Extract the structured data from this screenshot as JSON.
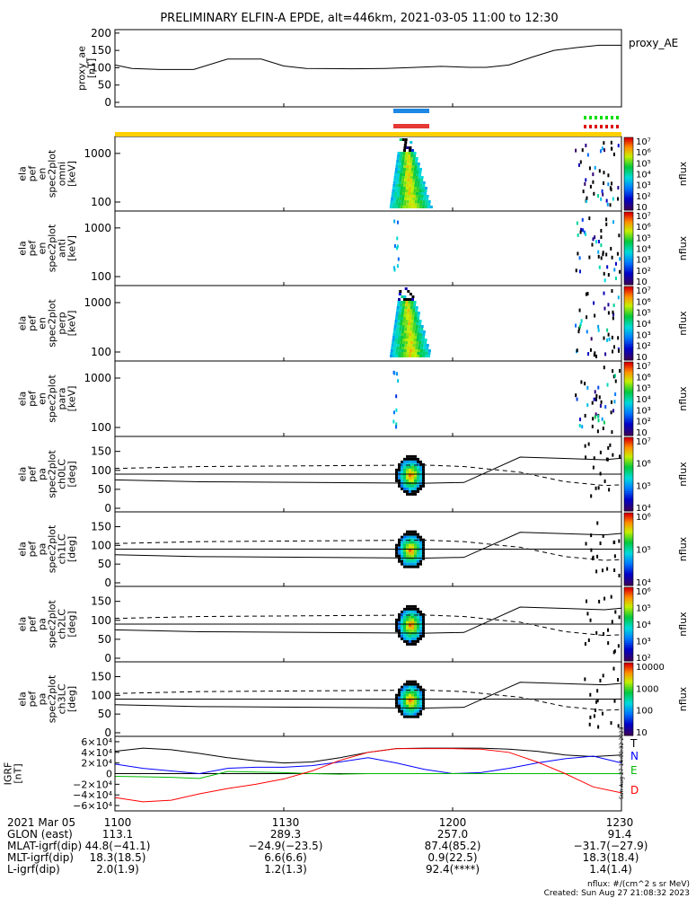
{
  "title": "PRELIMINARY ELFIN-A EPDE, alt=446km, 2021-03-05 11:00 to 12:30",
  "chart_data": [
    {
      "type": "line",
      "name": "proxy_ae",
      "ylabel_lines": [
        "proxy_ae",
        "[nT]"
      ],
      "legend": "proxy_AE",
      "y_ticks": [
        "0",
        "50",
        "100",
        "150",
        "200"
      ],
      "ylim": [
        0,
        210
      ],
      "x_minutes": [
        0,
        3,
        8,
        14,
        20,
        26,
        30,
        34,
        42,
        48,
        52,
        58,
        63,
        66,
        70,
        74,
        78,
        82,
        86,
        90
      ],
      "values": [
        108,
        98,
        95,
        95,
        125,
        125,
        105,
        98,
        97,
        98,
        100,
        104,
        101,
        101,
        108,
        130,
        150,
        158,
        165,
        165
      ]
    },
    {
      "type": "heatmap",
      "name": "spectrogram-omni",
      "ylabel_lines": [
        "ela",
        "pef",
        "en",
        "spec2plot",
        "omni",
        "[keV]"
      ],
      "y_ticks": [
        "100",
        "1000"
      ],
      "colorbar": {
        "label": "nflux",
        "ticks": [
          "10",
          "10²",
          "10³",
          "10⁴",
          "10⁵",
          "10⁶",
          "10⁷"
        ]
      }
    },
    {
      "type": "heatmap",
      "name": "spectrogram-anti",
      "ylabel_lines": [
        "ela",
        "pef",
        "en",
        "spec2plot",
        "anti",
        "[keV]"
      ],
      "y_ticks": [
        "100",
        "1000"
      ],
      "colorbar": {
        "label": "nflux",
        "ticks": [
          "10",
          "10²",
          "10³",
          "10⁴",
          "10⁵",
          "10⁶",
          "10⁷"
        ]
      }
    },
    {
      "type": "heatmap",
      "name": "spectrogram-perp",
      "ylabel_lines": [
        "ela",
        "pef",
        "en",
        "spec2plot",
        "perp",
        "[keV]"
      ],
      "y_ticks": [
        "100",
        "1000"
      ],
      "colorbar": {
        "label": "nflux",
        "ticks": [
          "10",
          "10²",
          "10³",
          "10⁴",
          "10⁵",
          "10⁶",
          "10⁷"
        ]
      }
    },
    {
      "type": "heatmap",
      "name": "spectrogram-para",
      "ylabel_lines": [
        "ela",
        "pef",
        "en",
        "spec2plot",
        "para",
        "[keV]"
      ],
      "y_ticks": [
        "100",
        "1000"
      ],
      "colorbar": {
        "label": "nflux",
        "ticks": [
          "10",
          "10²",
          "10³",
          "10⁴",
          "10⁵",
          "10⁶",
          "10⁷"
        ]
      }
    },
    {
      "type": "heatmap",
      "name": "pitch-angle-ch0LC",
      "ylabel_lines": [
        "ela",
        "pef",
        "pa",
        "spec2plot",
        "ch0LC",
        "[deg]"
      ],
      "y_ticks": [
        "0",
        "50",
        "100",
        "150"
      ],
      "colorbar": {
        "label": "nflux",
        "ticks": [
          "10⁴",
          "10⁵",
          "10⁶",
          "10⁷"
        ]
      }
    },
    {
      "type": "heatmap",
      "name": "pitch-angle-ch1LC",
      "ylabel_lines": [
        "ela",
        "pef",
        "pa",
        "spec2plot",
        "ch1LC",
        "[deg]"
      ],
      "y_ticks": [
        "0",
        "50",
        "100",
        "150"
      ],
      "colorbar": {
        "label": "nflux",
        "ticks": [
          "10⁴",
          "10⁵",
          "10⁶"
        ]
      }
    },
    {
      "type": "heatmap",
      "name": "pitch-angle-ch2LC",
      "ylabel_lines": [
        "ela",
        "pef",
        "pa",
        "spec2plot",
        "ch2LC",
        "[deg]"
      ],
      "y_ticks": [
        "0",
        "50",
        "100",
        "150"
      ],
      "colorbar": {
        "label": "nflux",
        "ticks": [
          "10²",
          "10³",
          "10⁴",
          "10⁵",
          "10⁶"
        ]
      }
    },
    {
      "type": "heatmap",
      "name": "pitch-angle-ch3LC",
      "ylabel_lines": [
        "ela",
        "pef",
        "pa",
        "spec2plot",
        "ch3LC",
        "[deg]"
      ],
      "y_ticks": [
        "0",
        "50",
        "100",
        "150"
      ],
      "colorbar": {
        "label": "nflux",
        "ticks": [
          "10",
          "100",
          "1000",
          "10000"
        ]
      }
    },
    {
      "type": "line",
      "name": "igrf-field",
      "ylabel_lines": [
        "IGRF",
        "[nT]"
      ],
      "y_ticks": [
        "−6×10⁴",
        "−4×10⁴",
        "−2×10⁴",
        "0",
        "2×10⁴",
        "4×10⁴",
        "6×10⁴"
      ],
      "ylim": [
        -65000,
        65000
      ],
      "legend": [
        {
          "label": "T",
          "color": "#000000"
        },
        {
          "label": "N",
          "color": "#0000ff"
        },
        {
          "label": "E",
          "color": "#00bb00"
        },
        {
          "label": "D",
          "color": "#ff0000"
        }
      ],
      "x_minutes": [
        0,
        5,
        10,
        15,
        20,
        25,
        30,
        35,
        40,
        45,
        50,
        55,
        60,
        65,
        70,
        75,
        80,
        85,
        90
      ],
      "series": [
        {
          "name": "T",
          "values": [
            42000,
            48000,
            45000,
            38000,
            30000,
            24000,
            20000,
            22000,
            30000,
            40000,
            47000,
            48000,
            48000,
            48000,
            46000,
            42000,
            35000,
            32000,
            35000
          ]
        },
        {
          "name": "N",
          "values": [
            18000,
            10000,
            5000,
            0,
            10000,
            12000,
            12000,
            15000,
            22000,
            30000,
            20000,
            8000,
            0,
            2000,
            10000,
            20000,
            28000,
            33000,
            20000
          ]
        },
        {
          "name": "E",
          "values": [
            -5000,
            -6000,
            -7000,
            -9000,
            4000,
            3000,
            2000,
            0,
            -1000,
            0,
            0,
            0,
            0,
            0,
            0,
            0,
            0,
            0,
            0
          ]
        },
        {
          "name": "D",
          "values": [
            -45000,
            -53000,
            -50000,
            -38000,
            -28000,
            -20000,
            -10000,
            5000,
            25000,
            40000,
            47000,
            47000,
            47000,
            46000,
            40000,
            22000,
            0,
            -25000,
            -36000
          ]
        }
      ]
    }
  ],
  "flux_units": "nflux: #/(cm^2 s sr MeV)",
  "created": "Created: Sun Aug 27 21:08:32 2023",
  "small_stamp": "Sun Aug 27 14:08:32 2023",
  "x_axis": {
    "date": "2021 Mar 05",
    "ticks": [
      "1100",
      "1130",
      "1200",
      "1230"
    ],
    "rows": [
      {
        "label": "GLON (east)",
        "values": [
          "113.1",
          "289.3",
          "257.0",
          "91.4"
        ]
      },
      {
        "label": "MLAT-igrf(dip)",
        "values": [
          "44.8(−41.1)",
          "−24.9(−23.5)",
          "87.4(85.2)",
          "−31.7(−27.9)"
        ]
      },
      {
        "label": "MLT-igrf(dip)",
        "values": [
          "18.3(18.5)",
          "6.6(6.6)",
          "0.9(22.5)",
          "18.3(18.4)"
        ]
      },
      {
        "label": "L-igrf(dip)",
        "values": [
          "2.0(1.9)",
          "1.2(1.3)",
          "92.4(****)",
          "1.4(1.4)"
        ]
      }
    ]
  }
}
